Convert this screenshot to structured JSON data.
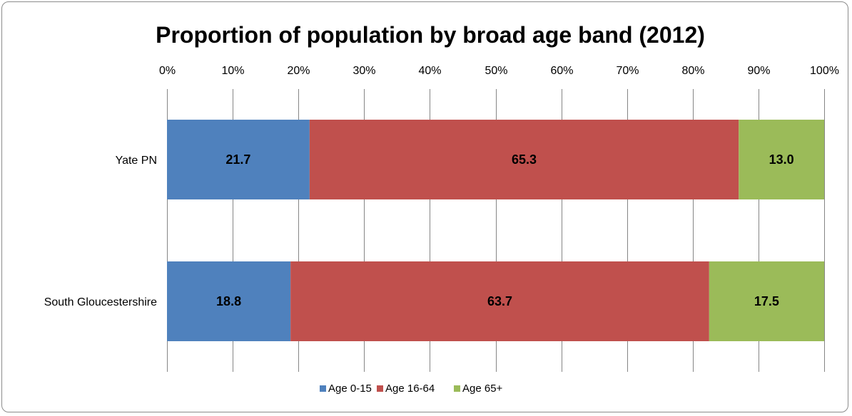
{
  "chart_data": {
    "type": "bar",
    "orientation": "horizontal",
    "stacked": "percent",
    "title": "Proportion of population by broad age band (2012)",
    "categories": [
      "Yate PN",
      "South Gloucestershire"
    ],
    "series": [
      {
        "name": "Age 0-15",
        "values": [
          21.7,
          18.8
        ],
        "labels": [
          "21.7",
          "18.8"
        ],
        "color": "#4f81bd"
      },
      {
        "name": "Age 16-64",
        "values": [
          65.3,
          63.7
        ],
        "labels": [
          "65.3",
          "63.7"
        ],
        "color": "#c0504d"
      },
      {
        "name": "Age 65+",
        "values": [
          13.0,
          17.5
        ],
        "labels": [
          "13.0",
          "17.5"
        ],
        "color": "#9bbb59"
      }
    ],
    "xlim": [
      0,
      100
    ],
    "ticks": [
      "0%",
      "10%",
      "20%",
      "30%",
      "40%",
      "50%",
      "60%",
      "70%",
      "80%",
      "90%",
      "100%"
    ],
    "tick_position": "top",
    "grid": "vertical",
    "legend_position": "bottom",
    "xlabel": "",
    "ylabel": ""
  }
}
